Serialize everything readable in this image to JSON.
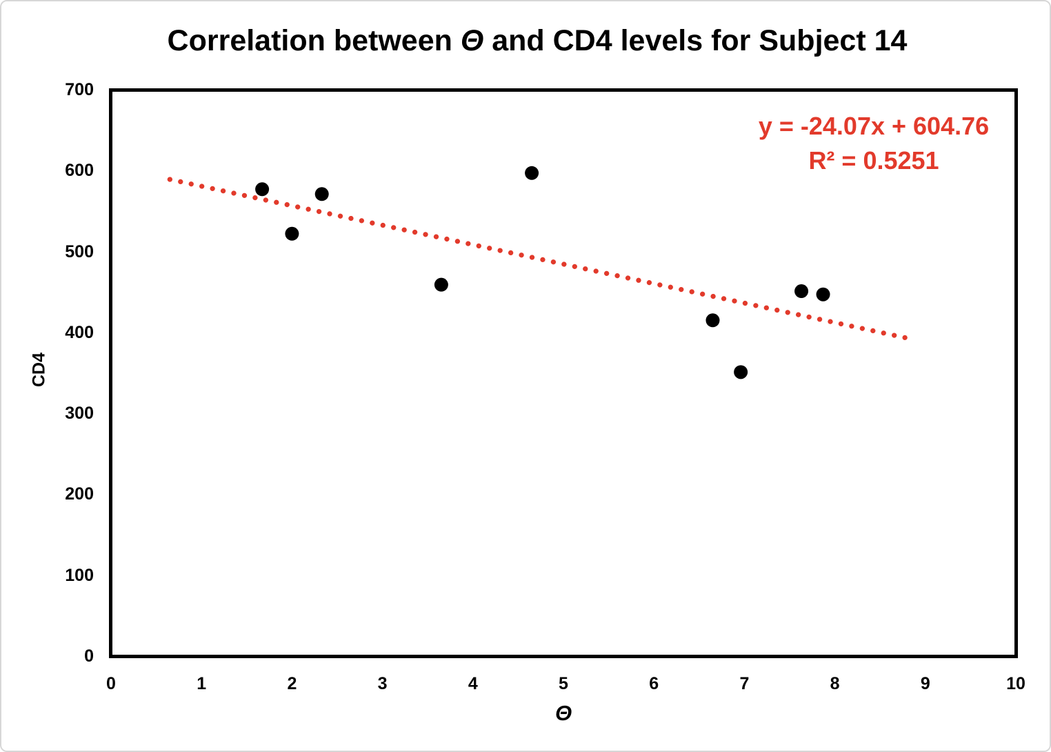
{
  "chart_data": {
    "type": "scatter",
    "title": "Correlation between Θ and CD4 levels for Subject 14",
    "title_parts": {
      "prefix": "Correlation between ",
      "theta": "Θ",
      "suffix": " and CD4 levels for Subject 14"
    },
    "xlabel": "Θ",
    "ylabel": "CD4",
    "xlim": [
      0,
      10
    ],
    "ylim": [
      0,
      700
    ],
    "x_ticks": [
      0,
      1,
      2,
      3,
      4,
      5,
      6,
      7,
      8,
      9,
      10
    ],
    "y_ticks": [
      0,
      100,
      200,
      300,
      400,
      500,
      600,
      700
    ],
    "grid": false,
    "legend_position": "none",
    "points": [
      {
        "x": 1.67,
        "y": 577
      },
      {
        "x": 2.0,
        "y": 522
      },
      {
        "x": 2.33,
        "y": 571
      },
      {
        "x": 3.65,
        "y": 459
      },
      {
        "x": 4.65,
        "y": 597
      },
      {
        "x": 6.65,
        "y": 415
      },
      {
        "x": 6.96,
        "y": 351
      },
      {
        "x": 7.63,
        "y": 451
      },
      {
        "x": 7.87,
        "y": 447
      }
    ],
    "point_color": "#000000",
    "point_radius": 10,
    "trendline": {
      "style": "dotted",
      "color": "#e23a2b",
      "slope": -24.07,
      "intercept": 604.76,
      "x_start": 0.65,
      "x_end": 8.82,
      "equation_label": "y = -24.07x + 604.76",
      "r_squared_label": "R² = 0.5251"
    },
    "frame_color": "#000000",
    "text_color": "#000000",
    "background_color": "#ffffff"
  }
}
